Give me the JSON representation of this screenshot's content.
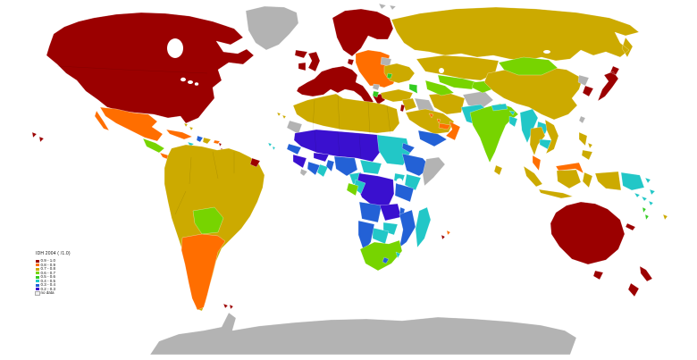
{
  "map": {
    "title": "IDH 2004 ( /1.0)",
    "no_data_label": "no data",
    "ocean_color": "#ffffff",
    "legend": [
      {
        "label": "0.9 - 1.0",
        "class": "c1",
        "color": "#9b0000"
      },
      {
        "label": "0.8 - 0.9",
        "class": "c2",
        "color": "#ff6e00"
      },
      {
        "label": "0.7 - 0.8",
        "class": "c3",
        "color": "#ccaa00"
      },
      {
        "label": "0.6 - 0.7",
        "class": "c4",
        "color": "#77d400"
      },
      {
        "label": "0.5 - 0.6",
        "class": "c5",
        "color": "#33cc22"
      },
      {
        "label": "0.4 - 0.5",
        "class": "c6",
        "color": "#22c7c7"
      },
      {
        "label": "0.3 - 0.4",
        "class": "c7",
        "color": "#2361d6"
      },
      {
        "label": "0.2 - 0.3",
        "class": "c8",
        "color": "#3a10cf"
      }
    ],
    "class_colors": {
      "c1": "#9b0000",
      "c2": "#ff6e00",
      "c3": "#ccaa00",
      "c4": "#77d400",
      "c5": "#33cc22",
      "c6": "#22c7c7",
      "c7": "#2361d6",
      "c8": "#3a10cf",
      "nd": "#b3b3b3"
    },
    "regions": {
      "canada-usa": "c1",
      "greenland": "nd",
      "hawaii": "c1",
      "mexico": "c2",
      "central-america-north": "c4",
      "costa-rica-panama": "c2",
      "cuba": "c2",
      "jamaica": "c6",
      "haiti": "c7",
      "dominican-republic": "c3",
      "puerto-rico": "c2",
      "bahamas": "c3",
      "lesser-antilles": "c1",
      "south-america": "c3",
      "bolivia": "c4",
      "chile-argentina": "c2",
      "french-guiana": "c1",
      "falklands": "c1",
      "antarctica": "nd",
      "iceland": "c1",
      "ireland": "c1",
      "uk": "c1",
      "scandinavia": "c1",
      "denmark": "c1",
      "western-europe": "c1",
      "greece": "c1",
      "eastern-europe": "c2",
      "serbia": "nd",
      "albania": "c5",
      "belarus": "nd",
      "ukraine": "c3",
      "moldova": "c5",
      "russia": "c3",
      "svalbard": "nd",
      "turkey": "c3",
      "caucasus": "c5",
      "syria-jordan": "c3",
      "israel": "c1",
      "iraq": "nd",
      "saudi-arabia": "c3",
      "yemen": "c7",
      "oman": "c2",
      "uae-qatar": "c2",
      "kuwait": "c2",
      "iran": "c3",
      "afghanistan": "nd",
      "pakistan": "c6",
      "kazakhstan": "c3",
      "uzbekistan": "c4",
      "turkmenistan": "c4",
      "kyrgyz-tajik": "c4",
      "india": "c4",
      "nepal-bhutan": "c6",
      "bangladesh": "c6",
      "sri-lanka": "c3",
      "china": "c3",
      "mongolia": "c4",
      "north-korea": "nd",
      "south-korea": "c1",
      "japan": "c1",
      "taiwan": "nd",
      "myanmar": "c6",
      "laos": "c6",
      "thailand": "c3",
      "cambodia": "c6",
      "vietnam": "c3",
      "malaysia": "c2",
      "indonesia": "c3",
      "png": "c6",
      "philippines": "c3",
      "north-africa": "c3",
      "western-sahara": "nd",
      "sahel": "c8",
      "senegal": "c7",
      "guinea-sl": "c8",
      "liberia": "nd",
      "cote-divoire": "c7",
      "ghana": "c6",
      "burkina": "c8",
      "benin-togo": "c7",
      "nigeria": "c7",
      "cameroon": "c6",
      "car": "c6",
      "sudan": "c6",
      "eritrea-djibouti": "c7",
      "ethiopia": "c7",
      "somalia": "nd",
      "uganda": "c6",
      "kenya": "c6",
      "tanzania": "c7",
      "drc": "c8",
      "congo": "c6",
      "gabon": "c4",
      "angola": "c7",
      "zambia": "c8",
      "malawi": "c7",
      "mozambique": "c7",
      "zimbabwe": "c6",
      "botswana": "c6",
      "namibia": "c7",
      "south-africa": "c4",
      "lesotho": "c7",
      "swaziland": "c6",
      "madagascar": "c6",
      "australia": "c1",
      "tasmania": "c1",
      "new-zealand": "c1",
      "new-caledonia": "c1",
      "vanuatu": "c5",
      "fiji": "c3",
      "solomon-islands": "c6",
      "canary-islands": "c3",
      "cape-verde": "c6",
      "mauritius": "c2",
      "reunion": "c1"
    }
  }
}
